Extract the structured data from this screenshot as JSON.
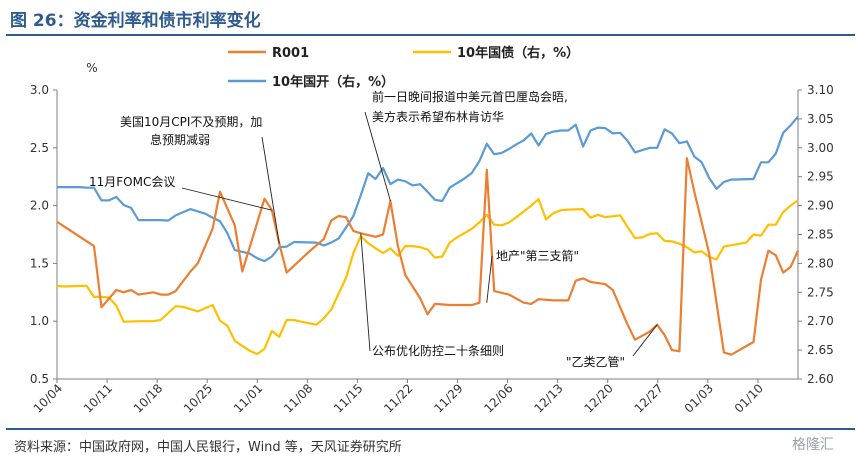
{
  "title": "图 26：资金利率和债市利率变化",
  "source": "资料来源：中国政府网，中国人民银行，Wind 等，天风证券研究所",
  "watermark": "格隆汇",
  "colors": {
    "R001": "#ed7d31",
    "cgb10": "#ffc000",
    "cdb10": "#5b9bd5",
    "axis": "#7f7f7f"
  },
  "chart_data": {
    "type": "line",
    "y_left": {
      "unit": "%",
      "ticks": [
        "0.5",
        "1.0",
        "1.5",
        "2.0",
        "2.5",
        "3.0"
      ],
      "ylim": [
        0.5,
        3.0
      ]
    },
    "y_right": {
      "ticks": [
        "2.60",
        "2.65",
        "2.70",
        "2.75",
        "2.80",
        "2.85",
        "2.90",
        "2.95",
        "3.00",
        "3.05",
        "3.10"
      ],
      "ylim": [
        2.6,
        3.1
      ]
    },
    "x_ticks": [
      "10/04",
      "10/11",
      "10/18",
      "10/25",
      "11/01",
      "11/08",
      "11/15",
      "11/22",
      "11/29",
      "12/06",
      "12/13",
      "12/20",
      "12/27",
      "01/03",
      "01/10"
    ],
    "legend": [
      "R001",
      "10年国债（右，%）",
      "10年国开（右，%）"
    ],
    "series": [
      {
        "name": "R001",
        "axis": "left",
        "values": [
          [
            0,
            1.86
          ],
          [
            5,
            1.65
          ],
          [
            6,
            1.12
          ],
          [
            8,
            1.27
          ],
          [
            9,
            1.25
          ],
          [
            10,
            1.27
          ],
          [
            11,
            1.23
          ],
          [
            13,
            1.25
          ],
          [
            14,
            1.23
          ],
          [
            15,
            1.23
          ],
          [
            16,
            1.26
          ],
          [
            18,
            1.43
          ],
          [
            19,
            1.5
          ],
          [
            21,
            1.8
          ],
          [
            22,
            2.12
          ],
          [
            24,
            1.83
          ],
          [
            25,
            1.43
          ],
          [
            28,
            2.06
          ],
          [
            29,
            1.96
          ],
          [
            30,
            1.67
          ],
          [
            31,
            1.42
          ],
          [
            34,
            1.6
          ],
          [
            36,
            1.71
          ],
          [
            37,
            1.87
          ],
          [
            38,
            1.91
          ],
          [
            39,
            1.9
          ],
          [
            40,
            1.78
          ],
          [
            41,
            1.76
          ],
          [
            43,
            1.73
          ],
          [
            44,
            1.75
          ],
          [
            45,
            2.04
          ],
          [
            46,
            1.65
          ],
          [
            47,
            1.4
          ],
          [
            49,
            1.2
          ],
          [
            50,
            1.06
          ],
          [
            51,
            1.15
          ],
          [
            53,
            1.14
          ],
          [
            56,
            1.14
          ],
          [
            57,
            1.16
          ],
          [
            58,
            2.31
          ],
          [
            59,
            1.26
          ],
          [
            61,
            1.23
          ],
          [
            63,
            1.16
          ],
          [
            64,
            1.15
          ],
          [
            65,
            1.19
          ],
          [
            67,
            1.18
          ],
          [
            69,
            1.18
          ],
          [
            70,
            1.35
          ],
          [
            71,
            1.37
          ],
          [
            72,
            1.34
          ],
          [
            74,
            1.32
          ],
          [
            75,
            1.27
          ],
          [
            77,
            0.97
          ],
          [
            78,
            0.84
          ],
          [
            80,
            0.91
          ],
          [
            81,
            0.97
          ],
          [
            82,
            0.88
          ],
          [
            83,
            0.75
          ],
          [
            84,
            0.74
          ],
          [
            85,
            2.41
          ],
          [
            86,
            2.12
          ],
          [
            88,
            1.59
          ],
          [
            90,
            0.73
          ],
          [
            91,
            0.71
          ],
          [
            94,
            0.82
          ],
          [
            95,
            1.36
          ],
          [
            96,
            1.61
          ],
          [
            97,
            1.57
          ],
          [
            98,
            1.42
          ],
          [
            99,
            1.47
          ],
          [
            100,
            1.61
          ]
        ]
      },
      {
        "name": "10年国债（右，%）",
        "axis": "right",
        "values": [
          [
            0,
            2.761
          ],
          [
            1,
            2.76
          ],
          [
            3,
            2.761
          ],
          [
            4,
            2.761
          ],
          [
            5,
            2.742
          ],
          [
            6,
            2.742
          ],
          [
            7,
            2.741
          ],
          [
            8,
            2.727
          ],
          [
            9,
            2.699
          ],
          [
            11,
            2.7
          ],
          [
            13,
            2.7
          ],
          [
            14,
            2.702
          ],
          [
            16,
            2.726
          ],
          [
            17,
            2.725
          ],
          [
            19,
            2.717
          ],
          [
            21,
            2.728
          ],
          [
            22,
            2.701
          ],
          [
            23,
            2.692
          ],
          [
            24,
            2.666
          ],
          [
            26,
            2.649
          ],
          [
            27,
            2.643
          ],
          [
            28,
            2.652
          ],
          [
            29,
            2.683
          ],
          [
            30,
            2.673
          ],
          [
            31,
            2.702
          ],
          [
            32,
            2.702
          ],
          [
            33,
            2.699
          ],
          [
            35,
            2.694
          ],
          [
            36,
            2.705
          ],
          [
            37,
            2.72
          ],
          [
            39,
            2.775
          ],
          [
            40,
            2.818
          ],
          [
            41,
            2.847
          ],
          [
            42,
            2.835
          ],
          [
            43,
            2.826
          ],
          [
            44,
            2.818
          ],
          [
            45,
            2.826
          ],
          [
            46,
            2.813
          ],
          [
            47,
            2.83
          ],
          [
            48,
            2.83
          ],
          [
            49,
            2.828
          ],
          [
            50,
            2.824
          ],
          [
            51,
            2.81
          ],
          [
            52,
            2.812
          ],
          [
            53,
            2.836
          ],
          [
            54,
            2.845
          ],
          [
            56,
            2.86
          ],
          [
            57,
            2.871
          ],
          [
            58,
            2.884
          ],
          [
            59,
            2.867
          ],
          [
            60,
            2.866
          ],
          [
            61,
            2.871
          ],
          [
            62,
            2.88
          ],
          [
            63,
            2.89
          ],
          [
            64,
            2.9
          ],
          [
            65,
            2.911
          ],
          [
            66,
            2.876
          ],
          [
            67,
            2.887
          ],
          [
            68,
            2.892
          ],
          [
            69,
            2.893
          ],
          [
            71,
            2.894
          ],
          [
            72,
            2.879
          ],
          [
            73,
            2.884
          ],
          [
            74,
            2.88
          ],
          [
            76,
            2.883
          ],
          [
            77,
            2.863
          ],
          [
            78,
            2.844
          ],
          [
            79,
            2.845
          ],
          [
            80,
            2.851
          ],
          [
            81,
            2.852
          ],
          [
            82,
            2.839
          ],
          [
            83,
            2.838
          ],
          [
            84,
            2.834
          ],
          [
            85,
            2.828
          ],
          [
            86,
            2.819
          ],
          [
            87,
            2.821
          ],
          [
            88,
            2.811
          ],
          [
            89,
            2.807
          ],
          [
            90,
            2.829
          ],
          [
            93,
            2.836
          ],
          [
            94,
            2.85
          ],
          [
            95,
            2.848
          ],
          [
            96,
            2.867
          ],
          [
            97,
            2.867
          ],
          [
            98,
            2.889
          ],
          [
            99,
            2.9
          ],
          [
            100,
            2.909
          ]
        ]
      },
      {
        "name": "10年国开（右，%）",
        "axis": "right",
        "values": [
          [
            0,
            2.932
          ],
          [
            3,
            2.932
          ],
          [
            4,
            2.931
          ],
          [
            5,
            2.931
          ],
          [
            6,
            2.909
          ],
          [
            7,
            2.909
          ],
          [
            8,
            2.915
          ],
          [
            9,
            2.901
          ],
          [
            10,
            2.896
          ],
          [
            11,
            2.875
          ],
          [
            14,
            2.875
          ],
          [
            15,
            2.874
          ],
          [
            16,
            2.883
          ],
          [
            18,
            2.894
          ],
          [
            20,
            2.886
          ],
          [
            21,
            2.879
          ],
          [
            22,
            2.873
          ],
          [
            23,
            2.852
          ],
          [
            24,
            2.823
          ],
          [
            26,
            2.817
          ],
          [
            27,
            2.809
          ],
          [
            28,
            2.804
          ],
          [
            29,
            2.812
          ],
          [
            30,
            2.828
          ],
          [
            31,
            2.829
          ],
          [
            32,
            2.837
          ],
          [
            35,
            2.836
          ],
          [
            36,
            2.831
          ],
          [
            37,
            2.836
          ],
          [
            38,
            2.843
          ],
          [
            39,
            2.862
          ],
          [
            40,
            2.882
          ],
          [
            41,
            2.918
          ],
          [
            42,
            2.956
          ],
          [
            43,
            2.946
          ],
          [
            44,
            2.965
          ],
          [
            45,
            2.937
          ],
          [
            46,
            2.945
          ],
          [
            47,
            2.942
          ],
          [
            48,
            2.935
          ],
          [
            49,
            2.937
          ],
          [
            50,
            2.924
          ],
          [
            51,
            2.91
          ],
          [
            52,
            2.908
          ],
          [
            53,
            2.931
          ],
          [
            54,
            2.939
          ],
          [
            55,
            2.947
          ],
          [
            56,
            2.957
          ],
          [
            57,
            2.977
          ],
          [
            58,
            3.007
          ],
          [
            59,
            2.989
          ],
          [
            60,
            2.991
          ],
          [
            61,
            2.998
          ],
          [
            62,
            3.006
          ],
          [
            63,
            3.013
          ],
          [
            64,
            3.025
          ],
          [
            65,
            3.004
          ],
          [
            66,
            3.024
          ],
          [
            67,
            3.028
          ],
          [
            68,
            3.03
          ],
          [
            69,
            3.03
          ],
          [
            70,
            3.04
          ],
          [
            71,
            3.002
          ],
          [
            72,
            3.03
          ],
          [
            73,
            3.035
          ],
          [
            74,
            3.034
          ],
          [
            75,
            3.025
          ],
          [
            76,
            3.026
          ],
          [
            77,
            3.012
          ],
          [
            78,
            2.992
          ],
          [
            79,
            2.996
          ],
          [
            80,
            3.0
          ],
          [
            81,
            3.0
          ],
          [
            82,
            3.032
          ],
          [
            83,
            3.025
          ],
          [
            84,
            3.008
          ],
          [
            85,
            3.011
          ],
          [
            86,
            2.985
          ],
          [
            87,
            2.975
          ],
          [
            88,
            2.948
          ],
          [
            89,
            2.929
          ],
          [
            90,
            2.941
          ],
          [
            91,
            2.945
          ],
          [
            94,
            2.946
          ],
          [
            95,
            2.975
          ],
          [
            96,
            2.975
          ],
          [
            97,
            2.99
          ],
          [
            98,
            3.026
          ],
          [
            99,
            3.039
          ],
          [
            100,
            3.054
          ]
        ]
      }
    ],
    "annotations": [
      {
        "text_lines": [
          "前一日晚间报道中美元首巴厘岛会晤,",
          "美方表示希望布林肯访华"
        ],
        "target": [
          45,
          2.04
        ]
      },
      {
        "text_lines": [
          "美国10月CPI不及预期，加",
          "息预期减弱"
        ],
        "target": [
          30,
          1.67
        ]
      },
      {
        "text_lines": [
          "11月FOMC会议"
        ],
        "target": [
          29,
          1.96
        ]
      },
      {
        "text_lines": [
          "地产\"第三支箭\""
        ],
        "target": [
          58,
          1.16
        ]
      },
      {
        "text_lines": [
          "公布优化防控二十条细则"
        ],
        "target": [
          41,
          1.76
        ]
      },
      {
        "text_lines": [
          "\"乙类乙管\""
        ],
        "target": [
          81,
          0.97
        ]
      }
    ]
  }
}
